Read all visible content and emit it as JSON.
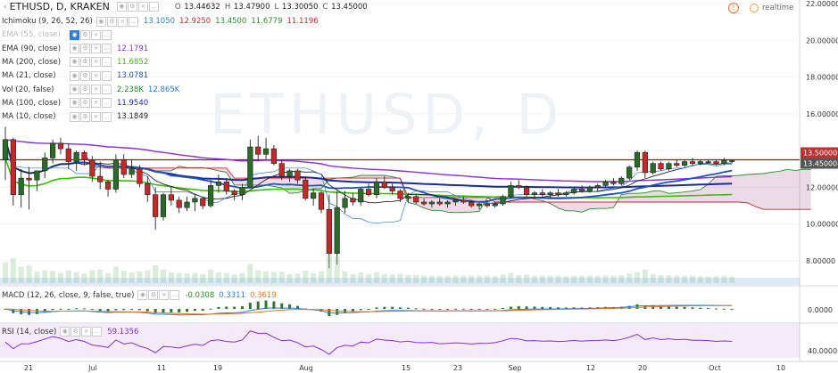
{
  "header": {
    "symbol": "ETHUSD, D, KRAKEN",
    "ohlc": [
      {
        "k": "O",
        "v": "13.44632"
      },
      {
        "k": "H",
        "v": "13.47900"
      },
      {
        "k": "L",
        "v": "13.30050"
      },
      {
        "k": "C",
        "v": "13.45000"
      }
    ],
    "realtime": "realtime",
    "watermark": "ETHUSD, D"
  },
  "indicators": [
    {
      "name": "Ichimoku (9, 26, 52, 26)",
      "values": [
        {
          "v": "13.1050",
          "c": "#2e7bd1"
        },
        {
          "v": "12.9250",
          "c": "#cc2233"
        },
        {
          "v": "13.4500",
          "c": "#2a8a2a"
        },
        {
          "v": "11.6779",
          "c": "#2a8a2a"
        },
        {
          "v": "11.1196",
          "c": "#cc2233"
        }
      ]
    },
    {
      "name": "EMA (55, close)",
      "values": [],
      "faded": true,
      "eye": true
    },
    {
      "name": "EMA (90, close)",
      "values": [
        {
          "v": "12.1791",
          "c": "#8a2be2"
        }
      ]
    },
    {
      "name": "MA (200, close)",
      "values": [
        {
          "v": "11.6852",
          "c": "#36c000"
        }
      ]
    },
    {
      "name": "MA (21, close)",
      "values": [
        {
          "v": "13.0781",
          "c": "#1e50c8"
        }
      ]
    },
    {
      "name": "Vol (20, false)",
      "values": [
        {
          "v": "2.238K",
          "c": "#2a8a2a"
        },
        {
          "v": "12.865K",
          "c": "#2e7bd1"
        }
      ]
    },
    {
      "name": "MA (100, close)",
      "values": [
        {
          "v": "11.9540",
          "c": "#1a2a9a"
        }
      ]
    },
    {
      "name": "MA (10, close)",
      "values": [
        {
          "v": "13.1849",
          "c": "#222222"
        }
      ]
    }
  ],
  "macd": {
    "name": "MACD (12, 26, close, 9, false, true)",
    "values": [
      {
        "v": "-0.0308",
        "c": "#2a8a2a"
      },
      {
        "v": "0.3311",
        "c": "#2e7bd1"
      },
      {
        "v": "0.3619",
        "c": "#e8732a"
      }
    ]
  },
  "rsi": {
    "name": "RSI (14, close)",
    "values": [
      {
        "v": "59.1356",
        "c": "#8a2be2"
      }
    ]
  },
  "price_axis": [
    "22.00000",
    "20.00000",
    "18.00000",
    "16.00000",
    "14.00000",
    "12.00000",
    "10.00000",
    "8.00000"
  ],
  "price_tags": [
    {
      "v": "13.50000",
      "c": "#c03030"
    },
    {
      "v": "13.45000",
      "c": "#555555"
    }
  ],
  "macd_axis": [
    "0.0000"
  ],
  "rsi_axis": [
    "40.0000"
  ],
  "x_axis": [
    "21",
    "Jul",
    "11",
    "19",
    "Aug",
    "15",
    "23",
    "Sep",
    "12",
    "20",
    "Oct",
    "10"
  ],
  "chart_data": {
    "type": "candlestick",
    "title": "ETHUSD, D, KRAKEN",
    "ylim": [
      6.5,
      22.0
    ],
    "x_range": [
      "2016-06-20",
      "2016-10-12"
    ],
    "candles": [
      [
        13.5,
        15.3,
        12.4,
        14.6
      ],
      [
        14.6,
        14.7,
        11.0,
        11.6
      ],
      [
        11.6,
        13.0,
        10.9,
        12.5
      ],
      [
        12.5,
        13.1,
        10.8,
        12.4
      ],
      [
        12.4,
        12.9,
        11.8,
        12.9
      ],
      [
        12.9,
        13.9,
        12.5,
        13.6
      ],
      [
        13.6,
        14.6,
        13.3,
        14.4
      ],
      [
        14.4,
        14.7,
        13.8,
        14.1
      ],
      [
        14.1,
        14.4,
        13.0,
        13.4
      ],
      [
        13.4,
        14.0,
        12.9,
        13.9
      ],
      [
        13.9,
        14.0,
        13.2,
        13.5
      ],
      [
        13.5,
        13.7,
        12.3,
        12.6
      ],
      [
        12.6,
        13.4,
        11.9,
        12.3
      ],
      [
        12.3,
        12.4,
        11.5,
        11.9
      ],
      [
        11.9,
        13.8,
        11.7,
        13.5
      ],
      [
        13.5,
        13.8,
        12.5,
        12.7
      ],
      [
        12.7,
        13.5,
        12.5,
        13.0
      ],
      [
        13.0,
        13.2,
        12.0,
        12.2
      ],
      [
        12.2,
        12.6,
        11.2,
        11.6
      ],
      [
        11.6,
        12.0,
        9.7,
        10.4
      ],
      [
        10.4,
        11.7,
        10.2,
        11.6
      ],
      [
        11.6,
        12.0,
        11.0,
        11.3
      ],
      [
        11.3,
        11.5,
        10.6,
        10.9
      ],
      [
        10.9,
        11.5,
        10.7,
        11.2
      ],
      [
        11.2,
        11.6,
        10.7,
        11.4
      ],
      [
        11.4,
        11.5,
        10.8,
        11.0
      ],
      [
        11.0,
        12.4,
        10.9,
        12.1
      ],
      [
        12.1,
        12.7,
        11.7,
        12.3
      ],
      [
        12.3,
        12.5,
        11.6,
        11.8
      ],
      [
        11.8,
        11.9,
        11.3,
        11.6
      ],
      [
        11.6,
        12.2,
        11.3,
        12.0
      ],
      [
        12.0,
        14.6,
        12.0,
        14.2
      ],
      [
        14.2,
        14.8,
        13.4,
        13.8
      ],
      [
        13.8,
        14.7,
        13.5,
        14.1
      ],
      [
        14.1,
        14.3,
        13.2,
        13.3
      ],
      [
        13.3,
        13.5,
        12.4,
        12.6
      ],
      [
        12.6,
        13.0,
        12.3,
        12.9
      ],
      [
        12.9,
        13.0,
        12.2,
        12.4
      ],
      [
        12.4,
        12.6,
        11.3,
        11.4
      ],
      [
        11.4,
        11.9,
        11.0,
        11.7
      ],
      [
        11.7,
        11.8,
        10.6,
        10.8
      ],
      [
        10.8,
        11.6,
        7.6,
        8.4
      ],
      [
        8.4,
        11.8,
        7.8,
        10.9
      ],
      [
        10.9,
        11.8,
        10.6,
        11.4
      ],
      [
        11.4,
        11.7,
        11.0,
        11.2
      ],
      [
        11.2,
        12.0,
        11.0,
        11.9
      ],
      [
        11.9,
        12.2,
        11.5,
        11.6
      ],
      [
        11.6,
        12.5,
        11.4,
        12.3
      ],
      [
        12.3,
        12.6,
        11.9,
        12.0
      ],
      [
        12.0,
        12.2,
        11.6,
        11.8
      ],
      [
        11.8,
        11.9,
        11.2,
        11.4
      ],
      [
        11.4,
        11.7,
        11.2,
        11.5
      ],
      [
        11.5,
        11.6,
        11.1,
        11.2
      ],
      [
        11.2,
        11.4,
        11.0,
        11.1
      ],
      [
        11.1,
        11.3,
        10.9,
        11.2
      ],
      [
        11.2,
        11.4,
        11.0,
        11.1
      ],
      [
        11.1,
        11.3,
        10.9,
        11.2
      ],
      [
        11.2,
        11.4,
        11.0,
        11.3
      ],
      [
        11.3,
        11.5,
        11.1,
        11.2
      ],
      [
        11.2,
        11.3,
        10.9,
        11.0
      ],
      [
        11.0,
        11.2,
        10.8,
        11.1
      ],
      [
        11.1,
        11.3,
        10.9,
        11.0
      ],
      [
        11.0,
        11.2,
        10.9,
        11.1
      ],
      [
        11.1,
        11.6,
        11.0,
        11.5
      ],
      [
        11.5,
        12.3,
        11.4,
        12.1
      ],
      [
        12.1,
        12.4,
        11.9,
        12.0
      ],
      [
        12.0,
        12.1,
        11.5,
        11.6
      ],
      [
        11.6,
        11.8,
        11.4,
        11.7
      ],
      [
        11.7,
        11.9,
        11.5,
        11.6
      ],
      [
        11.6,
        11.8,
        11.4,
        11.7
      ],
      [
        11.7,
        11.9,
        11.5,
        11.6
      ],
      [
        11.6,
        11.8,
        11.5,
        11.7
      ],
      [
        11.7,
        12.0,
        11.6,
        11.9
      ],
      [
        11.9,
        12.1,
        11.7,
        11.8
      ],
      [
        11.8,
        12.1,
        11.7,
        12.0
      ],
      [
        12.0,
        12.2,
        11.8,
        12.1
      ],
      [
        12.1,
        12.4,
        12.0,
        12.3
      ],
      [
        12.3,
        12.5,
        12.1,
        12.2
      ],
      [
        12.2,
        12.6,
        12.1,
        12.5
      ],
      [
        12.5,
        13.2,
        12.4,
        13.1
      ],
      [
        13.1,
        14.0,
        12.9,
        13.9
      ],
      [
        13.9,
        14.0,
        12.5,
        12.8
      ],
      [
        12.8,
        13.4,
        12.7,
        13.3
      ],
      [
        13.3,
        13.4,
        12.9,
        13.0
      ],
      [
        13.0,
        13.4,
        12.9,
        13.3
      ],
      [
        13.3,
        13.5,
        13.1,
        13.2
      ],
      [
        13.2,
        13.5,
        13.1,
        13.4
      ],
      [
        13.4,
        13.6,
        13.2,
        13.3
      ],
      [
        13.3,
        13.5,
        13.2,
        13.4
      ],
      [
        13.4,
        13.5,
        13.3,
        13.4
      ],
      [
        13.4,
        13.5,
        13.2,
        13.3
      ],
      [
        13.3,
        13.6,
        13.2,
        13.5
      ],
      [
        13.45,
        13.48,
        13.3,
        13.45
      ]
    ]
  }
}
